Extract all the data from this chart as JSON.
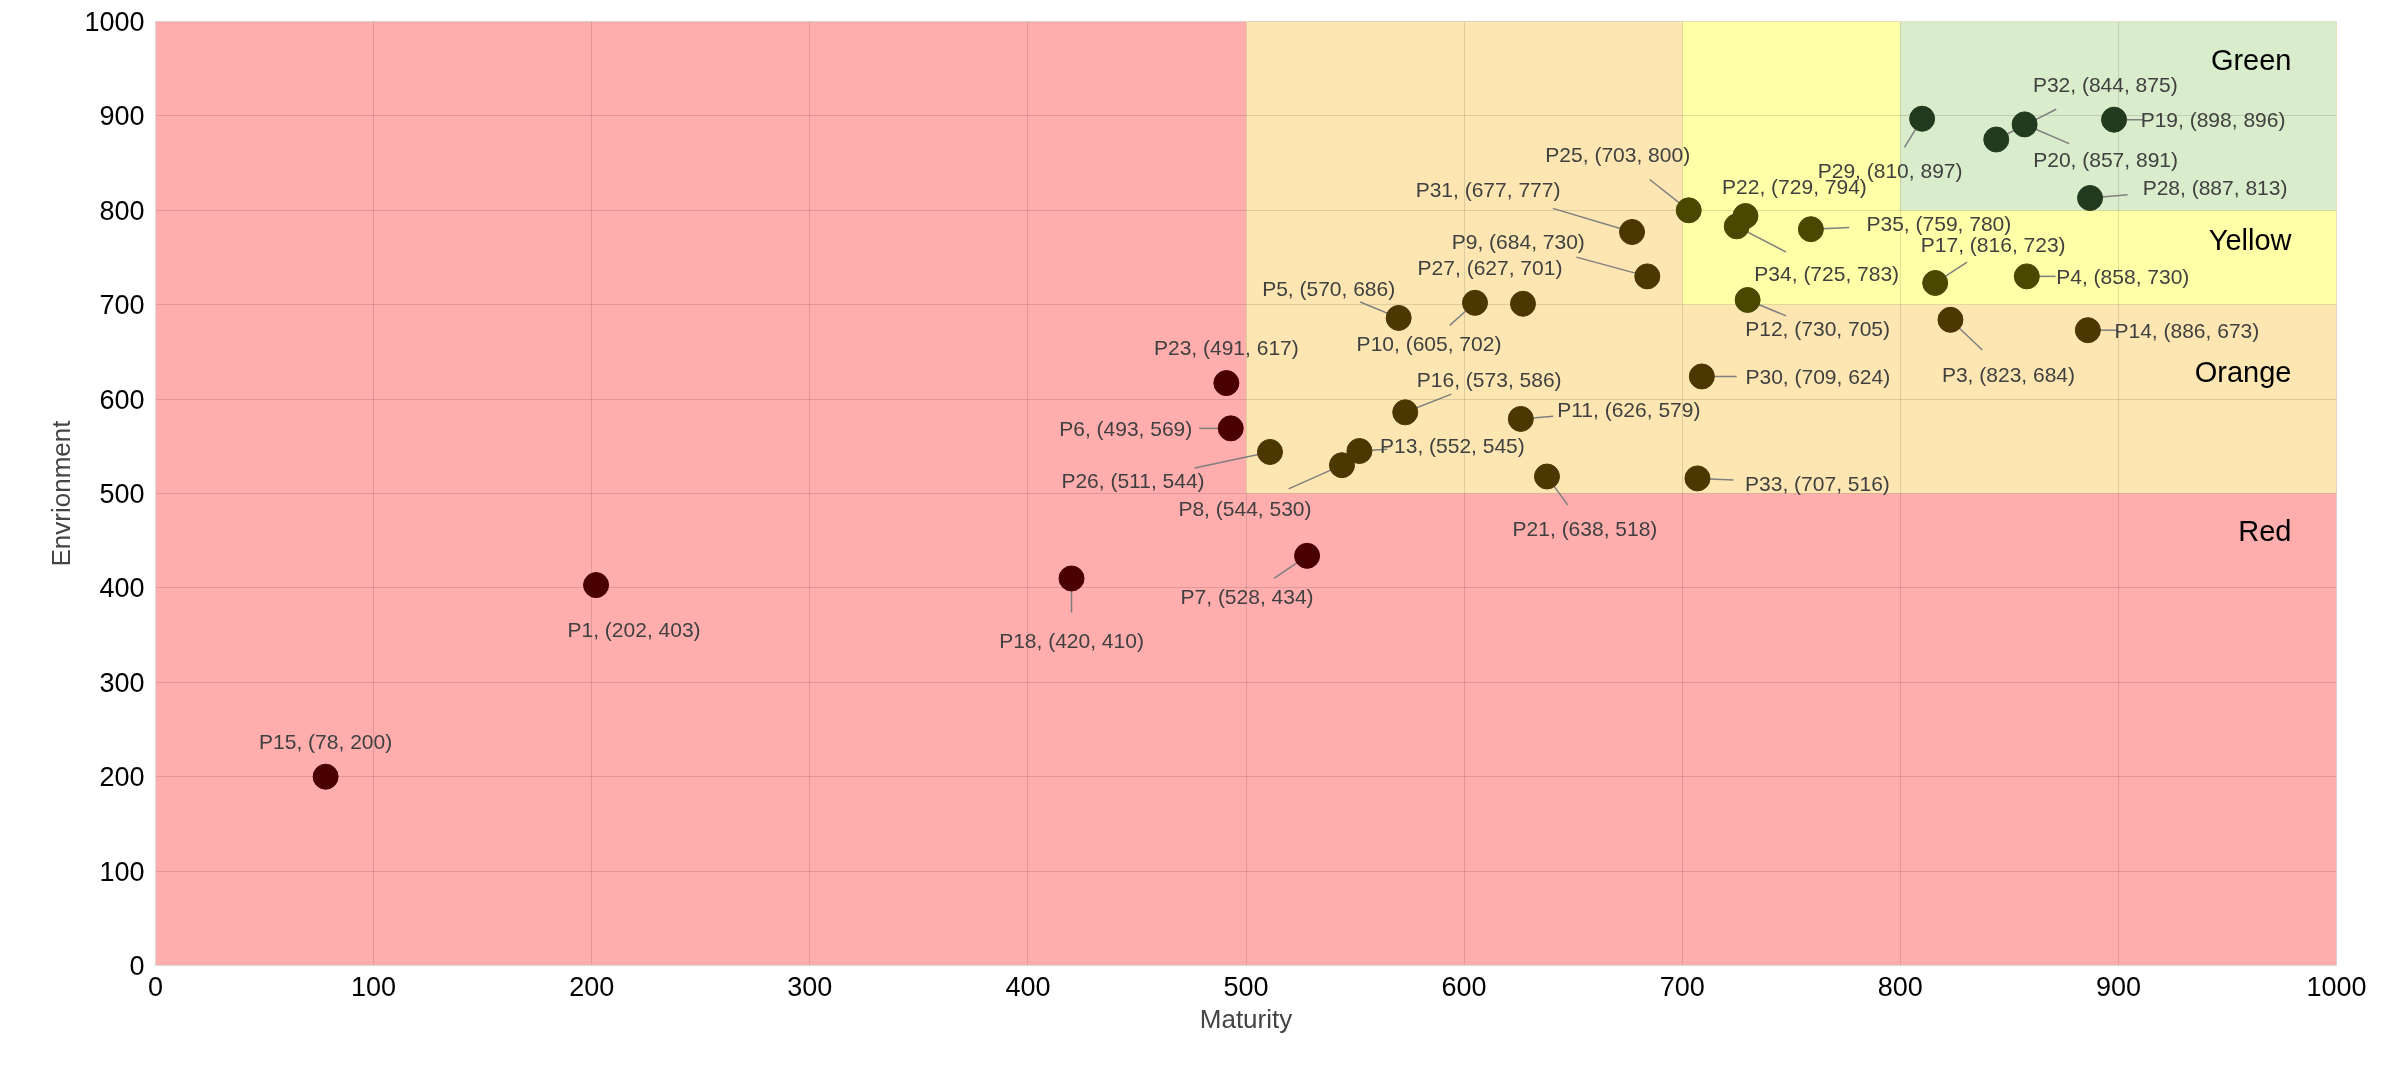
{
  "chart_data": {
    "type": "scatter",
    "xlabel": "Maturity",
    "ylabel": "Envrionment",
    "x": [
      202,
      823,
      858,
      570,
      493,
      528,
      544,
      684,
      605,
      626,
      730,
      552,
      886,
      78,
      573,
      816,
      420,
      898,
      857,
      638,
      729,
      491,
      703,
      511,
      627,
      887,
      810,
      709,
      677,
      844,
      707,
      725,
      759
    ],
    "values": [
      403,
      684,
      730,
      686,
      569,
      434,
      530,
      730,
      702,
      579,
      705,
      545,
      673,
      200,
      586,
      723,
      410,
      896,
      891,
      518,
      794,
      617,
      800,
      544,
      701,
      813,
      897,
      624,
      777,
      875,
      516,
      783,
      780
    ],
    "value_labels": [
      "P1, (202, 403)",
      "P3, (823, 684)",
      "P4, (858, 730)",
      "P5, (570, 686)",
      "P6, (493, 569)",
      "P7, (528, 434)",
      "P8, (544, 530)",
      "P9, (684, 730)",
      "P10, (605, 702)",
      "P11, (626, 579)",
      "P12, (730, 705)",
      "P13, (552, 545)",
      "P14, (886, 673)",
      "P15, (78, 200)",
      "P16, (573, 586)",
      "P17, (816, 723)",
      "P18, (420, 410)",
      "P19, (898, 896)",
      "P20, (857, 891)",
      "P21, (638, 518)",
      "P22, (729, 794)",
      "P23, (491, 617)",
      "P25, (703, 800)",
      "P26, (511, 544)",
      "P27, (627, 701)",
      "P28, (887, 813)",
      "P29, (810, 897)",
      "P30, (709, 624)",
      "P31, (677, 777)",
      "P32, (844, 875)",
      "P33, (707, 516)",
      "P34, (725, 783)",
      "P35, (759, 780)"
    ],
    "colors": [
      "#4a0000",
      "#4a3800",
      "#4a4800",
      "#4a3800",
      "#4a0000",
      "#4a0000",
      "#4a3800",
      "#4a3800",
      "#4a3800",
      "#4a3800",
      "#4a4800",
      "#4a3800",
      "#4a3800",
      "#4a0000",
      "#4a3800",
      "#4a4800",
      "#4a0000",
      "#223a1e",
      "#223a1e",
      "#4a3800",
      "#4a4800",
      "#4a0000",
      "#4a4800",
      "#4a3800",
      "#4a3800",
      "#223a1e",
      "#223a1e",
      "#4a3800",
      "#4a3800",
      "#223a1e",
      "#4a3800",
      "#4a4800",
      "#4a4800"
    ],
    "marker": "circle",
    "xlim": [
      0,
      1000
    ],
    "ylim": [
      0,
      1000
    ],
    "xticks": [
      0,
      100,
      200,
      300,
      400,
      500,
      600,
      700,
      800,
      900,
      1000
    ],
    "yticks": [
      0,
      100,
      200,
      300,
      400,
      500,
      600,
      700,
      800,
      900,
      1000
    ],
    "grid": true,
    "bands": [
      {
        "axis": "x",
        "from": 0,
        "to": 1000,
        "label": "Red",
        "color": "#ffadad"
      },
      {
        "axis": "x",
        "from": 500,
        "to": 1000,
        "label": "Orange",
        "color": "#fde6b2"
      },
      {
        "axis": "x",
        "from": 700,
        "to": 1000,
        "label": "Yellow",
        "color": "#ffffa8"
      },
      {
        "axis": "x",
        "from": 800,
        "to": 1000,
        "label": "Green",
        "color": "#d9eccb"
      }
    ]
  }
}
